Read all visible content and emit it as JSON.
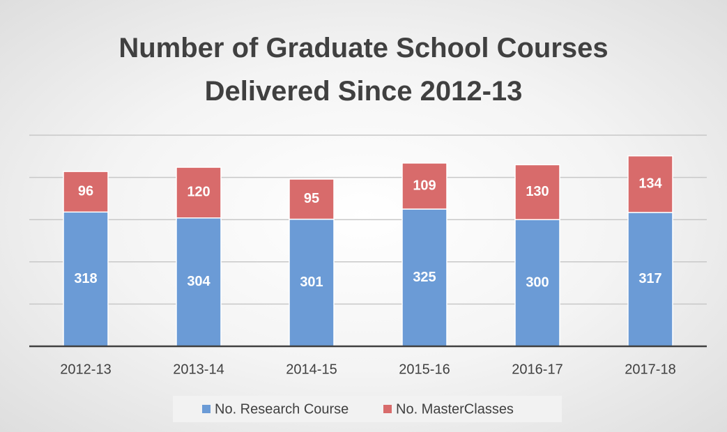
{
  "chart_data": {
    "type": "stacked_bar",
    "title": "Number of Graduate School Courses Delivered Since 2012-13",
    "categories": [
      "2012-13",
      "2013-14",
      "2014-15",
      "2015-16",
      "2016-17",
      "2017-18"
    ],
    "series": [
      {
        "name": "No. Research Course",
        "color": "#6b9bd6",
        "values": [
          318,
          304,
          301,
          325,
          300,
          317
        ]
      },
      {
        "name": "No. MasterClasses",
        "color": "#d86b6b",
        "values": [
          96,
          120,
          95,
          109,
          130,
          134
        ]
      }
    ],
    "ylim": [
      0,
      500
    ],
    "yticks": [
      0,
      100,
      200,
      300,
      400,
      500
    ],
    "grid": true,
    "legend": "bottom"
  }
}
